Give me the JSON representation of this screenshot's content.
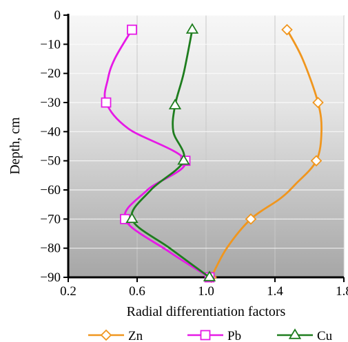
{
  "chart_data": {
    "type": "line",
    "xlabel": "Radial differentiation factors",
    "ylabel": "Depth, cm",
    "xlim": [
      0.2,
      1.8
    ],
    "ylim": [
      -90,
      0
    ],
    "xticks": [
      0.2,
      0.6,
      1.0,
      1.4,
      1.8
    ],
    "xtick_labels": [
      "0.2",
      "0.6",
      "1.0",
      "1.4",
      "1.8"
    ],
    "yticks": [
      0,
      -10,
      -20,
      -30,
      -40,
      -50,
      -60,
      -70,
      -80,
      -90
    ],
    "ytick_labels": [
      "0",
      "−10",
      "−20",
      "−30",
      "−40",
      "−50",
      "−60",
      "−70",
      "−80",
      "−90"
    ],
    "grid": true,
    "legend_position": "bottom",
    "background": "gradient-gray",
    "series": [
      {
        "name": "Zn",
        "color": "#f0961e",
        "marker": "diamond",
        "markers": [
          {
            "x": 1.47,
            "y": -5
          },
          {
            "x": 1.65,
            "y": -30
          },
          {
            "x": 1.64,
            "y": -50
          },
          {
            "x": 1.26,
            "y": -70
          },
          {
            "x": 1.03,
            "y": -90
          }
        ],
        "curve": [
          {
            "x": 1.47,
            "y": -5
          },
          {
            "x": 1.56,
            "y": -15
          },
          {
            "x": 1.65,
            "y": -30
          },
          {
            "x": 1.67,
            "y": -40
          },
          {
            "x": 1.64,
            "y": -50
          },
          {
            "x": 1.52,
            "y": -58
          },
          {
            "x": 1.43,
            "y": -63
          },
          {
            "x": 1.26,
            "y": -70
          },
          {
            "x": 1.12,
            "y": -80
          },
          {
            "x": 1.03,
            "y": -90
          }
        ]
      },
      {
        "name": "Pb",
        "color": "#e619e6",
        "marker": "square",
        "markers": [
          {
            "x": 0.57,
            "y": -5
          },
          {
            "x": 0.42,
            "y": -30
          },
          {
            "x": 0.88,
            "y": -50
          },
          {
            "x": 0.53,
            "y": -70
          },
          {
            "x": 1.02,
            "y": -90
          }
        ],
        "curve": [
          {
            "x": 0.57,
            "y": -5
          },
          {
            "x": 0.47,
            "y": -15
          },
          {
            "x": 0.43,
            "y": -22
          },
          {
            "x": 0.42,
            "y": -30
          },
          {
            "x": 0.55,
            "y": -39
          },
          {
            "x": 0.88,
            "y": -50
          },
          {
            "x": 0.66,
            "y": -60
          },
          {
            "x": 0.53,
            "y": -70
          },
          {
            "x": 0.78,
            "y": -81
          },
          {
            "x": 1.02,
            "y": -90
          }
        ]
      },
      {
        "name": "Cu",
        "color": "#1e7d1e",
        "marker": "triangle",
        "markers": [
          {
            "x": 0.92,
            "y": -5
          },
          {
            "x": 0.82,
            "y": -31
          },
          {
            "x": 0.87,
            "y": -50
          },
          {
            "x": 0.57,
            "y": -70
          },
          {
            "x": 1.02,
            "y": -90
          }
        ],
        "curve": [
          {
            "x": 0.92,
            "y": -5
          },
          {
            "x": 0.87,
            "y": -20
          },
          {
            "x": 0.82,
            "y": -31
          },
          {
            "x": 0.81,
            "y": -40
          },
          {
            "x": 0.87,
            "y": -50
          },
          {
            "x": 0.68,
            "y": -60
          },
          {
            "x": 0.57,
            "y": -70
          },
          {
            "x": 0.79,
            "y": -80
          },
          {
            "x": 1.02,
            "y": -90
          }
        ]
      }
    ]
  }
}
